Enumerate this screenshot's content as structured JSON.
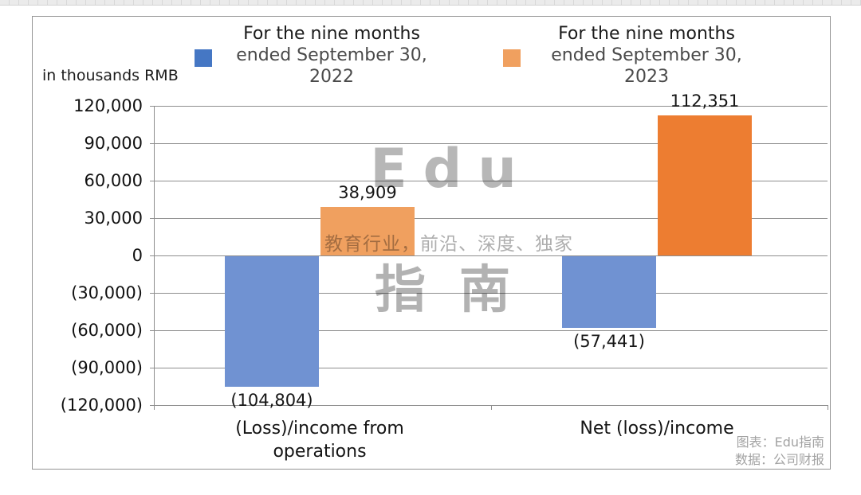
{
  "page": {
    "unit_label": "in thousands RMB",
    "watermark": {
      "brand_top": "Edu",
      "tagline": "教育行业，前沿、深度、独家",
      "brand_bottom": "指南"
    },
    "credits": {
      "chart_source": "图表：Edu指南",
      "data_source": "数据：公司财报"
    }
  },
  "legend": {
    "entries": [
      {
        "lines": [
          "For the nine months",
          "ended September 30,",
          "2022"
        ],
        "color": "#4577C4"
      },
      {
        "lines": [
          "For the nine months",
          "ended September 30,",
          "2023"
        ],
        "color": "#F0A05F"
      }
    ]
  },
  "chart_data": {
    "type": "bar",
    "title": "",
    "ylabel": "in thousands RMB",
    "categories": [
      "(Loss)/income from operations",
      "Net (loss)/income"
    ],
    "series": [
      {
        "name": "For the nine months ended September 30, 2022",
        "values": [
          -104804,
          -57441
        ],
        "labels": [
          "(104,804)",
          "(57,441)"
        ],
        "bar_colors": [
          "#7092D2",
          "#7092D2"
        ]
      },
      {
        "name": "For the nine months ended September 30, 2023",
        "values": [
          38909,
          112351
        ],
        "labels": [
          "38,909",
          "112,351"
        ],
        "bar_colors": [
          "#F0A05F",
          "#ED7D31"
        ]
      }
    ],
    "ylim": [
      -120000,
      120000
    ],
    "ytick_step": 30000,
    "ytick_labels": [
      "120,000",
      "90,000",
      "60,000",
      "30,000",
      "0",
      "(30,000)",
      "(60,000)",
      "(90,000)",
      "(120,000)"
    ],
    "grid": true,
    "legend_position": "top"
  }
}
